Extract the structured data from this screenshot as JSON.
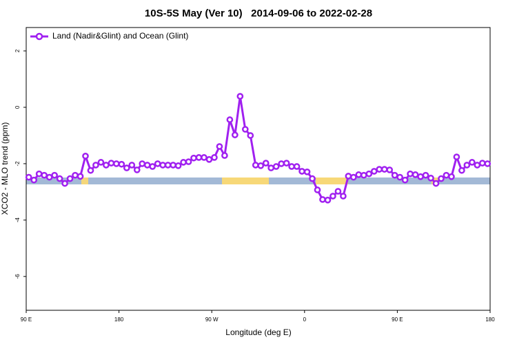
{
  "chart_data": {
    "type": "line",
    "title": "10S-5S May (Ver 10)   2014-09-06 to 2022-02-28",
    "x_label": "Longitude (deg E)",
    "y_label": "XCO2 - MLO trend (ppm)",
    "xlim": [
      90,
      540
    ],
    "ylim": [
      -7.2,
      2.83
    ],
    "xticks": [
      {
        "value": 90,
        "label": "90 E"
      },
      180,
      {
        "value": 270,
        "label": "90 W"
      },
      {
        "value": 360,
        "label": "0"
      },
      {
        "value": 450,
        "label": "90 E"
      },
      {
        "value": 540,
        "label": "180"
      }
    ],
    "yticks": [
      2,
      0,
      -2,
      -4,
      -6
    ],
    "legend": "upper left",
    "x": [
      92.5,
      97.5,
      102.5,
      107.5,
      112.5,
      117.5,
      122.5,
      127.5,
      132.5,
      137.5,
      142.5,
      147.5,
      152.5,
      157.5,
      162.5,
      167.5,
      172.5,
      177.5,
      182.5,
      187.5,
      192.5,
      197.5,
      202.5,
      207.5,
      212.5,
      217.5,
      222.5,
      227.5,
      232.5,
      237.5,
      242.5,
      247.5,
      252.5,
      257.5,
      262.5,
      267.5,
      272.5,
      277.5,
      282.5,
      287.5,
      292.5,
      297.5,
      302.5,
      307.5,
      312.5,
      317.5,
      322.5,
      327.5,
      332.5,
      337.5,
      342.5,
      347.5,
      352.5,
      357.5,
      362.5,
      367.5,
      372.5,
      377.5,
      382.5,
      387.5,
      392.5,
      397.5,
      402.5,
      407.5,
      412.5,
      417.5,
      422.5,
      427.5,
      432.5,
      437.5,
      442.5,
      447.5,
      452.5,
      457.5,
      462.5,
      467.5,
      472.5,
      477.5,
      482.5,
      487.5,
      492.5,
      497.5,
      502.5,
      507.5,
      512.5,
      517.5,
      522.5,
      527.5,
      532.5,
      537.5
    ],
    "series": [
      {
        "name": "Land (Nadir&Glint) and Ocean (Glint)",
        "color": "#a020f0",
        "values": [
          -2.48,
          -2.58,
          -2.36,
          -2.41,
          -2.48,
          -2.41,
          -2.53,
          -2.7,
          -2.53,
          -2.41,
          -2.45,
          -1.73,
          -2.24,
          -2.05,
          -1.95,
          -2.05,
          -1.98,
          -2.0,
          -2.02,
          -2.15,
          -2.05,
          -2.22,
          -2.0,
          -2.05,
          -2.1,
          -2.0,
          -2.05,
          -2.05,
          -2.05,
          -2.07,
          -1.95,
          -1.93,
          -1.8,
          -1.78,
          -1.78,
          -1.85,
          -1.78,
          -1.39,
          -1.71,
          -0.44,
          -0.98,
          0.39,
          -0.78,
          -1.0,
          -2.05,
          -2.07,
          -1.98,
          -2.15,
          -2.1,
          -2.0,
          -1.98,
          -2.1,
          -2.1,
          -2.27,
          -2.29,
          -2.53,
          -2.93,
          -3.27,
          -3.29,
          -3.15,
          -2.98,
          -3.15,
          -2.44,
          -2.48,
          -2.39,
          -2.41,
          -2.36,
          -2.27,
          -2.2,
          -2.2,
          -2.22,
          -2.41,
          -2.48,
          -2.58,
          -2.36,
          -2.39,
          -2.46,
          -2.41,
          -2.51,
          -2.7,
          -2.53,
          -2.41,
          -2.46,
          -1.76,
          -2.24,
          -2.05,
          -1.95,
          -2.05,
          -1.98,
          -2.0
        ]
      }
    ]
  }
}
